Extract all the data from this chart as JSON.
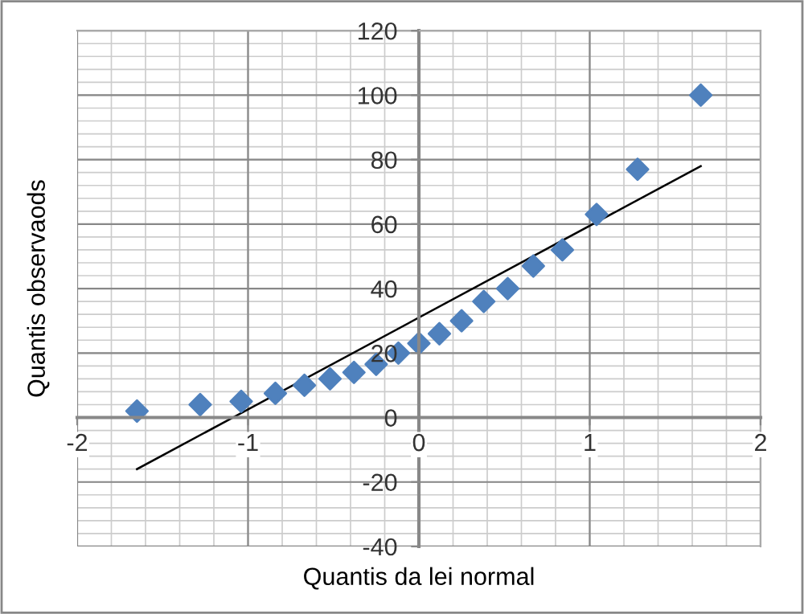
{
  "chart_data": {
    "type": "scatter",
    "xlabel": "Quantis da lei normal",
    "ylabel": "Quantis observaods",
    "series": [
      {
        "color": "#4f81bd",
        "marker": "diamond",
        "x": [
          -1.65,
          -1.28,
          -1.04,
          -0.84,
          -0.67,
          -0.52,
          -0.38,
          -0.25,
          -0.12,
          0,
          0.12,
          0.25,
          0.38,
          0.52,
          0.67,
          0.84,
          1.04,
          1.28,
          1.65
        ],
        "values": [
          2,
          4,
          5,
          7.5,
          10,
          12,
          14,
          16.5,
          20,
          23,
          26,
          30,
          36,
          40,
          47,
          52,
          63,
          77,
          100
        ]
      },
      {
        "type": "line",
        "color": "#000000",
        "marker": "none",
        "line_style": "solid",
        "x": [
          -1.65,
          1.65
        ],
        "values": [
          -16,
          78
        ]
      }
    ],
    "xlim": [
      -2,
      2
    ],
    "xticks": [
      -2,
      -1,
      0,
      1,
      2
    ],
    "ylim": [
      -40,
      120
    ],
    "yticks": [
      -40,
      -20,
      0,
      20,
      40,
      60,
      80,
      100,
      120
    ],
    "grid": true
  }
}
